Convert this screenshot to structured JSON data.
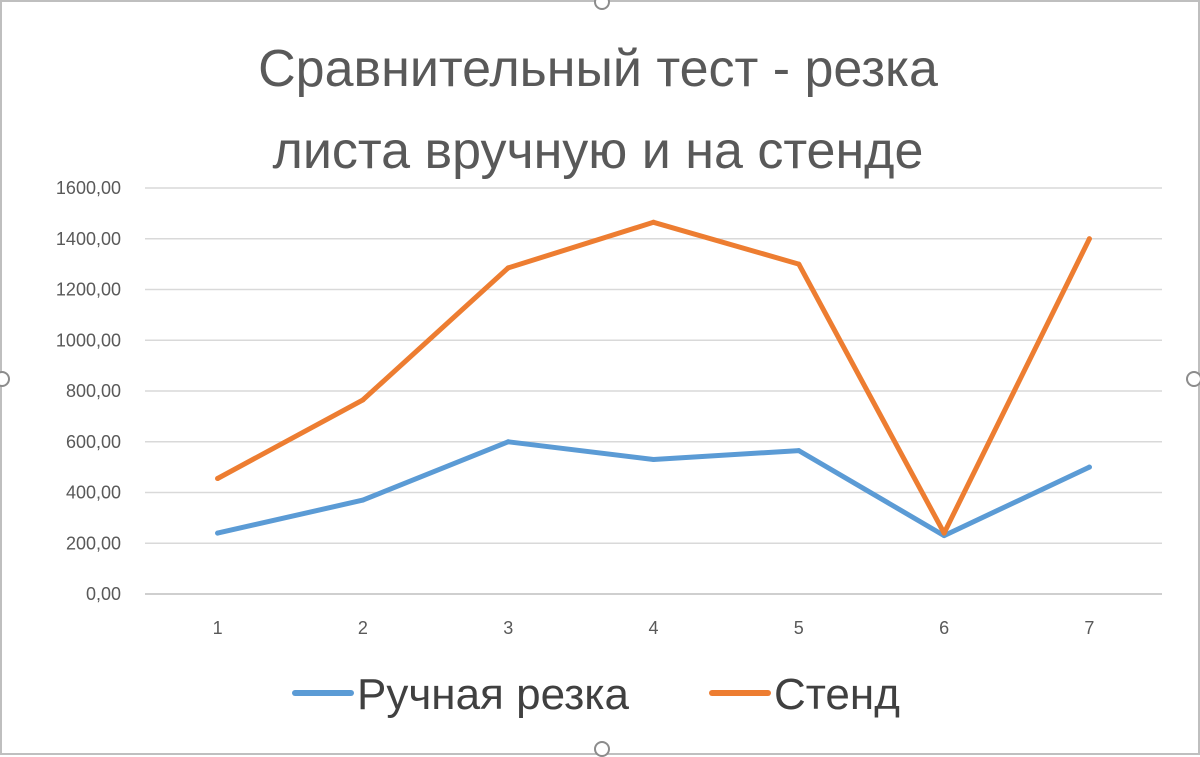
{
  "chart_data": {
    "type": "line",
    "title_lines": [
      "Сравнительный тест - резка",
      "листа вручную и на стенде"
    ],
    "xlabel": "",
    "ylabel": "",
    "categories": [
      "1",
      "2",
      "3",
      "4",
      "5",
      "6",
      "7"
    ],
    "y_ticks": [
      "0,00",
      "200,00",
      "400,00",
      "600,00",
      "800,00",
      "1000,00",
      "1200,00",
      "1400,00",
      "1600,00"
    ],
    "ylim": [
      0,
      1600
    ],
    "grid": true,
    "legend_position": "bottom",
    "series": [
      {
        "name": "Ручная резка",
        "color": "#5B9BD5",
        "values": [
          240,
          370,
          600,
          530,
          565,
          230,
          500
        ]
      },
      {
        "name": "Стенд",
        "color": "#ED7D31",
        "values": [
          455,
          765,
          1285,
          1465,
          1300,
          240,
          1400
        ]
      }
    ]
  }
}
